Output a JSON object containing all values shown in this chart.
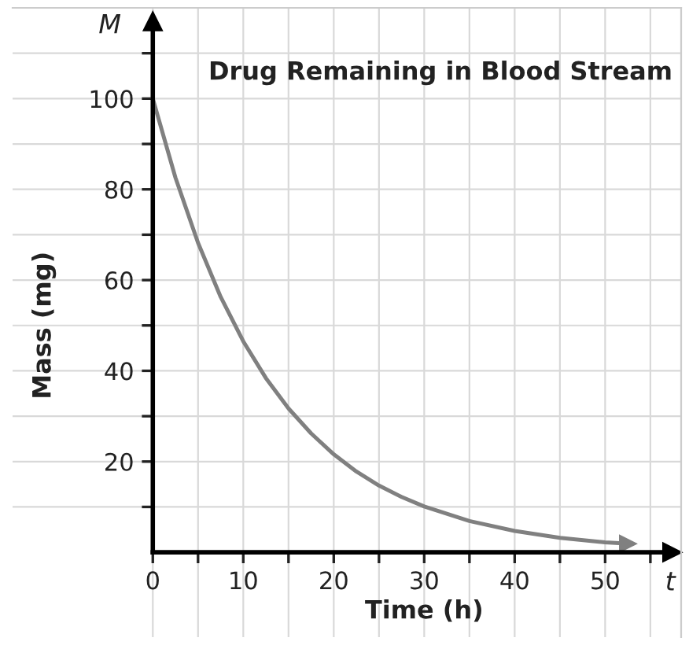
{
  "chart_data": {
    "type": "line",
    "title": "Drug Remaining in Blood Stream",
    "xlabel": "Time (h)",
    "ylabel": "Mass (mg)",
    "annotations": [
      "M",
      "t"
    ],
    "x": [
      0,
      2.5,
      5,
      7.5,
      10,
      12.5,
      15,
      17.5,
      20,
      22.5,
      25,
      27.5,
      30,
      35,
      40,
      45,
      50,
      52.5
    ],
    "series": [
      {
        "color": "#808080",
        "values": [
          100,
          82.6,
          68.2,
          56.3,
          46.5,
          38.4,
          31.7,
          26.2,
          21.6,
          17.8,
          14.7,
          12.2,
          10.1,
          6.9,
          4.7,
          3.2,
          2.2,
          1.9
        ]
      }
    ],
    "xlim": [
      -15.5,
      58.4
    ],
    "ylim": [
      -18.7,
      120
    ],
    "xticks": [
      0,
      {
        "value": 5,
        "label": null
      },
      10,
      {
        "value": 15,
        "label": null
      },
      20,
      {
        "value": 25,
        "label": null
      },
      30,
      {
        "value": 35,
        "label": null
      },
      40,
      {
        "value": 45,
        "label": null
      },
      50,
      {
        "value": 55,
        "label": null
      }
    ],
    "yticks": [
      {
        "value": 10,
        "label": null
      },
      20,
      {
        "value": 30,
        "label": null
      },
      40,
      {
        "value": 50,
        "label": null
      },
      60,
      {
        "value": 70,
        "label": null
      },
      80,
      {
        "value": 90,
        "label": null
      },
      100,
      {
        "value": 110,
        "label": null
      }
    ],
    "grid": true,
    "marker": "none",
    "line_style": "solid"
  }
}
